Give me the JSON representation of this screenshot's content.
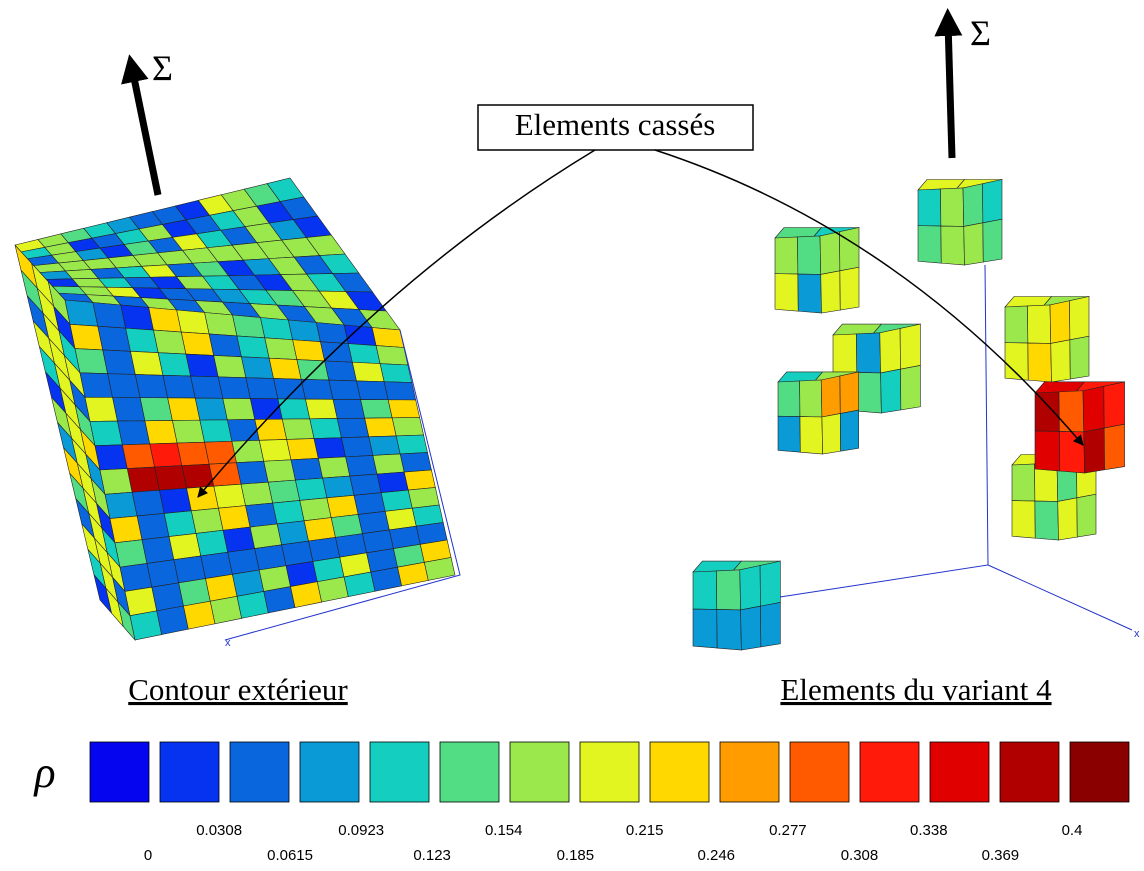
{
  "callout": "Elements cassés",
  "left_panel": {
    "caption": "Contour extérieur",
    "load_symbol": "Σ",
    "axis_label": "x"
  },
  "right_panel": {
    "caption": "Elements du variant 4",
    "load_symbol": "Σ",
    "axis_label": "x"
  },
  "colorbar": {
    "symbol": "ρ",
    "colors": [
      "#0505f0",
      "#0533f0",
      "#0a66dd",
      "#0a9ad5",
      "#14cec0",
      "#52dc84",
      "#9be84c",
      "#e2f520",
      "#ffd800",
      "#ff9c00",
      "#ff5a00",
      "#ff1a0a",
      "#e00000",
      "#b00000",
      "#8a0000"
    ],
    "ticks": [
      0,
      0.0308,
      0.0615,
      0.0923,
      0.123,
      0.154,
      0.185,
      0.215,
      0.246,
      0.277,
      0.308,
      0.338,
      0.369,
      0.4
    ]
  }
}
